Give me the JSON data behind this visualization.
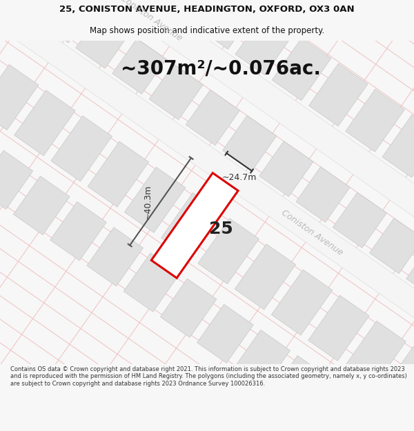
{
  "title_line1": "25, CONISTON AVENUE, HEADINGTON, OXFORD, OX3 0AN",
  "title_line2": "Map shows position and indicative extent of the property.",
  "area_text": "~307m²/~0.076ac.",
  "property_number": "25",
  "dim_width": "~24.7m",
  "dim_height": "~40.3m",
  "street_name": "Coniston Avenue",
  "footer_text": "Contains OS data © Crown copyright and database right 2021. This information is subject to Crown copyright and database rights 2023 and is reproduced with the permission of HM Land Registry. The polygons (including the associated geometry, namely x, y co-ordinates) are subject to Crown copyright and database rights 2023 Ordnance Survey 100026316.",
  "bg_color": "#f7f7f7",
  "map_bg": "#ffffff",
  "building_fill": "#e0e0e0",
  "building_edge": "#c8c8c8",
  "road_fill": "#eeeeee",
  "plot_stroke": "#dd0000",
  "plot_fill": "#ffffff",
  "grid_line_color": "#f0c0c0",
  "street_label_color": "#bbbbbb",
  "dim_color": "#333333",
  "area_color": "#111111",
  "title_color": "#111111",
  "footer_color": "#333333",
  "map_border_color": "#cccccc",
  "title_font_size": 9.5,
  "subtitle_font_size": 8.5,
  "area_font_size": 20,
  "prop_num_font_size": 18,
  "dim_font_size": 9,
  "street_font_size": 9,
  "footer_font_size": 6.0
}
